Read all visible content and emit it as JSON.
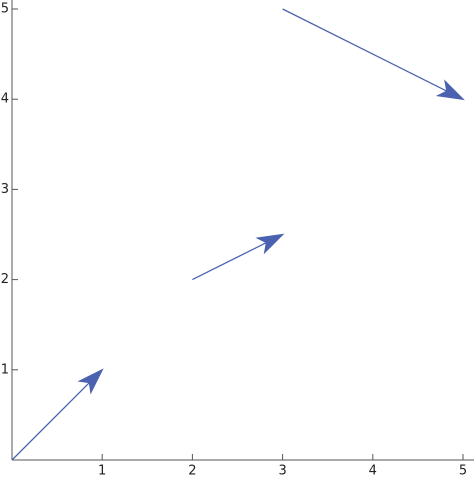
{
  "chart_data": {
    "type": "arrows",
    "x0": [
      0,
      2,
      3
    ],
    "y0": [
      0,
      2,
      5
    ],
    "x1": [
      1,
      3,
      5
    ],
    "y1": [
      1,
      2.5,
      4
    ],
    "color": "#4a62b0",
    "xlim": [
      0,
      5
    ],
    "ylim": [
      0,
      5
    ],
    "xticks": [
      1,
      2,
      3,
      4,
      5
    ],
    "yticks": [
      1,
      2,
      3,
      4,
      5
    ]
  }
}
